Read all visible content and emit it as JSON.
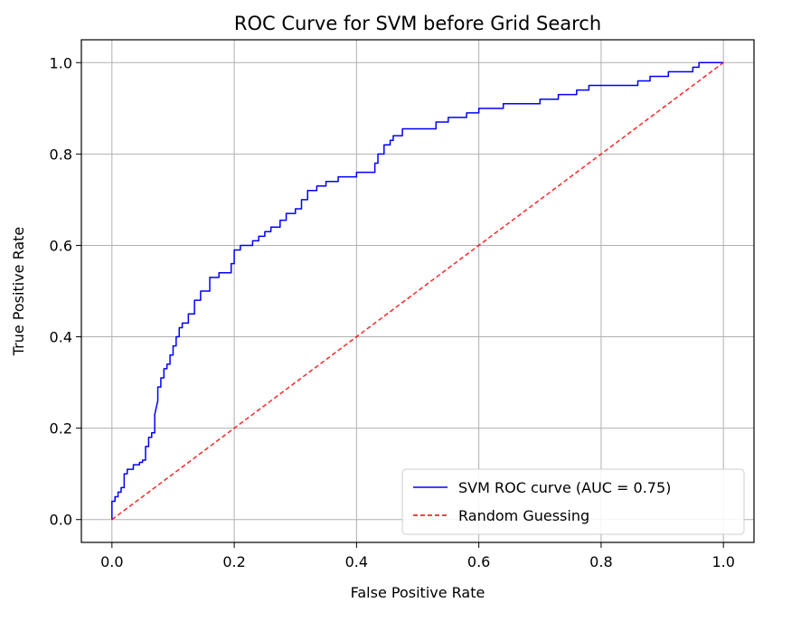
{
  "chart_data": {
    "type": "line",
    "title": "ROC Curve for SVM before Grid Search",
    "xlabel": "False Positive Rate",
    "ylabel": "True Positive Rate",
    "xlim": [
      -0.05,
      1.05
    ],
    "ylim": [
      -0.05,
      1.05
    ],
    "xticks": [
      0.0,
      0.2,
      0.4,
      0.6,
      0.8,
      1.0
    ],
    "yticks": [
      0.0,
      0.2,
      0.4,
      0.6,
      0.8,
      1.0
    ],
    "xtick_labels": [
      "0.0",
      "0.2",
      "0.4",
      "0.6",
      "0.8",
      "1.0"
    ],
    "ytick_labels": [
      "0.0",
      "0.2",
      "0.4",
      "0.6",
      "0.8",
      "1.0"
    ],
    "grid": true,
    "legend_position": "lower-right",
    "series": [
      {
        "name": "SVM ROC curve (AUC = 0.75)",
        "color": "#0000ff",
        "style": "solid",
        "points": [
          [
            0.0,
            0.0
          ],
          [
            0.0,
            0.04
          ],
          [
            0.005,
            0.04
          ],
          [
            0.005,
            0.05
          ],
          [
            0.01,
            0.05
          ],
          [
            0.01,
            0.06
          ],
          [
            0.015,
            0.06
          ],
          [
            0.015,
            0.07
          ],
          [
            0.02,
            0.07
          ],
          [
            0.02,
            0.1
          ],
          [
            0.025,
            0.1
          ],
          [
            0.025,
            0.11
          ],
          [
            0.035,
            0.11
          ],
          [
            0.035,
            0.12
          ],
          [
            0.045,
            0.12
          ],
          [
            0.045,
            0.125
          ],
          [
            0.05,
            0.125
          ],
          [
            0.05,
            0.13
          ],
          [
            0.055,
            0.13
          ],
          [
            0.055,
            0.16
          ],
          [
            0.06,
            0.16
          ],
          [
            0.06,
            0.18
          ],
          [
            0.065,
            0.18
          ],
          [
            0.065,
            0.19
          ],
          [
            0.07,
            0.19
          ],
          [
            0.07,
            0.23
          ],
          [
            0.075,
            0.26
          ],
          [
            0.075,
            0.29
          ],
          [
            0.08,
            0.29
          ],
          [
            0.08,
            0.31
          ],
          [
            0.085,
            0.31
          ],
          [
            0.085,
            0.33
          ],
          [
            0.09,
            0.33
          ],
          [
            0.09,
            0.34
          ],
          [
            0.095,
            0.34
          ],
          [
            0.095,
            0.36
          ],
          [
            0.1,
            0.36
          ],
          [
            0.1,
            0.38
          ],
          [
            0.105,
            0.38
          ],
          [
            0.105,
            0.4
          ],
          [
            0.11,
            0.4
          ],
          [
            0.11,
            0.42
          ],
          [
            0.115,
            0.42
          ],
          [
            0.115,
            0.43
          ],
          [
            0.125,
            0.43
          ],
          [
            0.125,
            0.45
          ],
          [
            0.135,
            0.45
          ],
          [
            0.135,
            0.48
          ],
          [
            0.145,
            0.48
          ],
          [
            0.145,
            0.5
          ],
          [
            0.16,
            0.5
          ],
          [
            0.16,
            0.53
          ],
          [
            0.175,
            0.53
          ],
          [
            0.175,
            0.54
          ],
          [
            0.195,
            0.54
          ],
          [
            0.195,
            0.56
          ],
          [
            0.2,
            0.56
          ],
          [
            0.2,
            0.59
          ],
          [
            0.21,
            0.59
          ],
          [
            0.21,
            0.6
          ],
          [
            0.23,
            0.6
          ],
          [
            0.23,
            0.61
          ],
          [
            0.24,
            0.61
          ],
          [
            0.24,
            0.62
          ],
          [
            0.25,
            0.62
          ],
          [
            0.25,
            0.63
          ],
          [
            0.26,
            0.63
          ],
          [
            0.26,
            0.64
          ],
          [
            0.275,
            0.64
          ],
          [
            0.275,
            0.655
          ],
          [
            0.285,
            0.655
          ],
          [
            0.285,
            0.67
          ],
          [
            0.3,
            0.67
          ],
          [
            0.3,
            0.68
          ],
          [
            0.31,
            0.68
          ],
          [
            0.31,
            0.7
          ],
          [
            0.32,
            0.7
          ],
          [
            0.32,
            0.72
          ],
          [
            0.335,
            0.72
          ],
          [
            0.335,
            0.73
          ],
          [
            0.35,
            0.73
          ],
          [
            0.35,
            0.74
          ],
          [
            0.37,
            0.74
          ],
          [
            0.37,
            0.75
          ],
          [
            0.4,
            0.75
          ],
          [
            0.4,
            0.76
          ],
          [
            0.43,
            0.76
          ],
          [
            0.43,
            0.78
          ],
          [
            0.435,
            0.78
          ],
          [
            0.435,
            0.8
          ],
          [
            0.445,
            0.8
          ],
          [
            0.445,
            0.82
          ],
          [
            0.455,
            0.82
          ],
          [
            0.455,
            0.83
          ],
          [
            0.46,
            0.83
          ],
          [
            0.46,
            0.84
          ],
          [
            0.475,
            0.84
          ],
          [
            0.475,
            0.855
          ],
          [
            0.53,
            0.855
          ],
          [
            0.53,
            0.87
          ],
          [
            0.55,
            0.87
          ],
          [
            0.55,
            0.88
          ],
          [
            0.58,
            0.88
          ],
          [
            0.58,
            0.89
          ],
          [
            0.6,
            0.89
          ],
          [
            0.6,
            0.9
          ],
          [
            0.64,
            0.9
          ],
          [
            0.64,
            0.91
          ],
          [
            0.7,
            0.91
          ],
          [
            0.7,
            0.92
          ],
          [
            0.73,
            0.92
          ],
          [
            0.73,
            0.93
          ],
          [
            0.76,
            0.93
          ],
          [
            0.76,
            0.94
          ],
          [
            0.78,
            0.94
          ],
          [
            0.78,
            0.95
          ],
          [
            0.86,
            0.95
          ],
          [
            0.86,
            0.96
          ],
          [
            0.88,
            0.96
          ],
          [
            0.88,
            0.97
          ],
          [
            0.91,
            0.97
          ],
          [
            0.91,
            0.98
          ],
          [
            0.95,
            0.98
          ],
          [
            0.95,
            0.99
          ],
          [
            0.96,
            0.99
          ],
          [
            0.96,
            1.0
          ],
          [
            1.0,
            1.0
          ]
        ]
      },
      {
        "name": "Random Guessing",
        "color": "#ff0000",
        "style": "dashed",
        "points": [
          [
            0.0,
            0.0
          ],
          [
            1.0,
            1.0
          ]
        ]
      }
    ]
  }
}
